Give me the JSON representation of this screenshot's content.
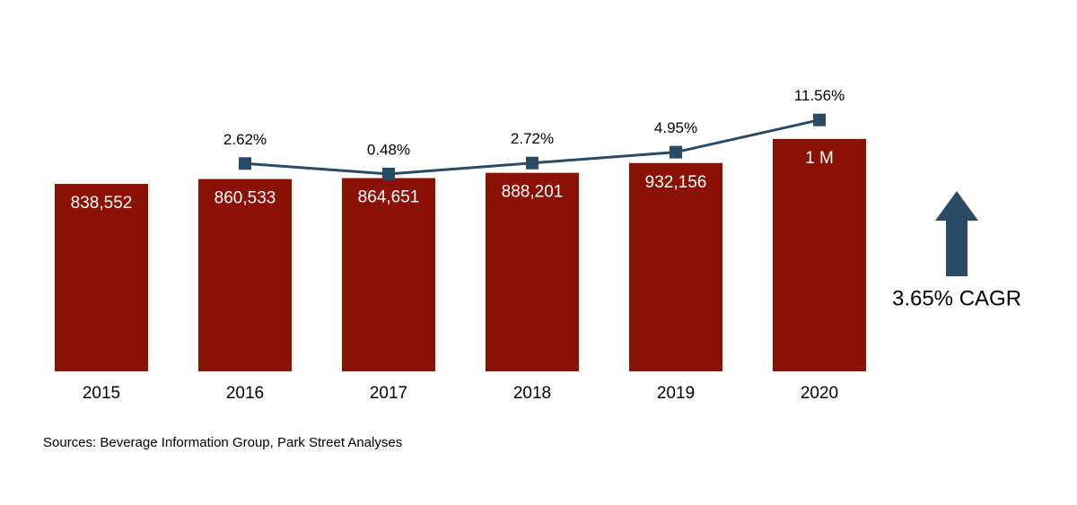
{
  "chart_data": {
    "type": "combo",
    "categories": [
      "2015",
      "2016",
      "2017",
      "2018",
      "2019",
      "2020"
    ],
    "series": [
      {
        "type": "bar",
        "color": "#8b1006",
        "values": [
          838552,
          860533,
          864651,
          888201,
          932156,
          1039913
        ],
        "value_labels": [
          "838,552",
          "860,533",
          "864,651",
          "888,201",
          "932,156",
          "1 M"
        ]
      },
      {
        "type": "line",
        "axis": "y2",
        "color": "#2b4a63",
        "values": [
          null,
          2.62,
          0.48,
          2.72,
          4.95,
          11.56
        ],
        "value_labels": [
          null,
          "2.62%",
          "0.48%",
          "2.72%",
          "4.95%",
          "11.56%"
        ]
      }
    ],
    "ylim": [
      0,
      1200000
    ],
    "y2lim": [
      -40,
      15
    ],
    "annotation": "3.65% CAGR",
    "source": "Sources: Beverage Information Group, Park Street Analyses"
  }
}
